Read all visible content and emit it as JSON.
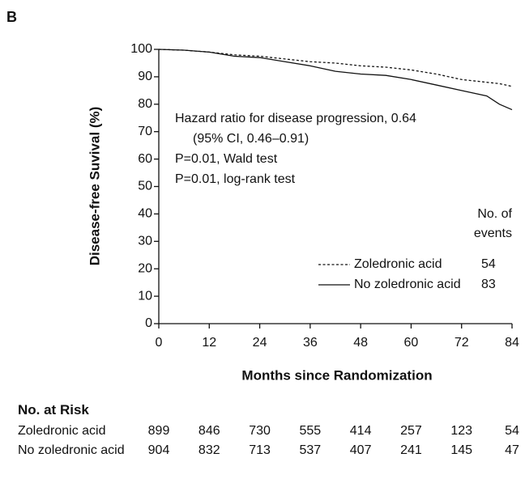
{
  "chart_data": {
    "type": "line",
    "panel": "B",
    "x_label": "Months since Randomization",
    "y_label": "Disease-free Suvival (%)",
    "x": [
      0,
      6,
      12,
      18,
      24,
      30,
      36,
      42,
      48,
      54,
      60,
      66,
      72,
      78,
      81,
      84
    ],
    "series": [
      {
        "name": "Zoledronic acid",
        "color": "#111111",
        "dash": true,
        "events": 54,
        "values": [
          100,
          99.7,
          99,
          98,
          97.5,
          96.5,
          95.5,
          95,
          94,
          93.5,
          92.5,
          91,
          89,
          88,
          87.5,
          86.5
        ]
      },
      {
        "name": "No zoledronic acid",
        "color": "#111111",
        "dash": false,
        "events": 83,
        "values": [
          100,
          99.7,
          99,
          97.5,
          97,
          95.5,
          94,
          92,
          91,
          90.5,
          89,
          87,
          85,
          83,
          80,
          78
        ]
      }
    ],
    "legend_title": "No. of events",
    "annotations": [
      "Hazard ratio for disease progression, 0.64",
      "(95% CI, 0.46–0.91)",
      "P=0.01, Wald test",
      "P=0.01, log-rank test"
    ],
    "xlim": [
      0,
      84
    ],
    "xticks": [
      0,
      12,
      24,
      36,
      48,
      60,
      72,
      84
    ],
    "ylim": [
      0,
      100
    ],
    "yticks": [
      0,
      10,
      20,
      30,
      40,
      50,
      60,
      70,
      80,
      90,
      100
    ],
    "risk_table": {
      "title": "No. at Risk",
      "rows": [
        {
          "label": "Zoledronic acid",
          "values": [
            899,
            846,
            730,
            555,
            414,
            257,
            123,
            54
          ]
        },
        {
          "label": "No zoledronic acid",
          "values": [
            904,
            832,
            713,
            537,
            407,
            241,
            145,
            47
          ]
        }
      ]
    }
  }
}
